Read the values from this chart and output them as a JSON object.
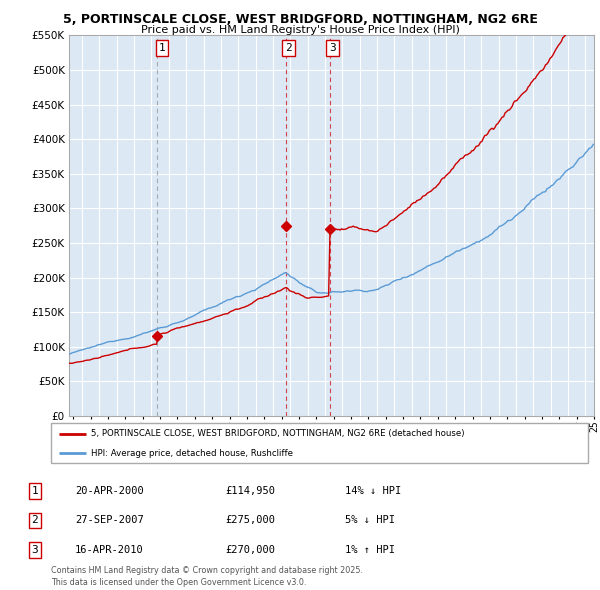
{
  "title_line1": "5, PORTINSCALE CLOSE, WEST BRIDGFORD, NOTTINGHAM, NG2 6RE",
  "title_line2": "Price paid vs. HM Land Registry's House Price Index (HPI)",
  "ylim_min": 0,
  "ylim_max": 550000,
  "xlim_start": 1995.25,
  "xlim_end": 2025.5,
  "sale_dates": [
    2000.31,
    2007.75,
    2010.29
  ],
  "sale_prices": [
    114950,
    275000,
    270000
  ],
  "sale_labels": [
    "1",
    "2",
    "3"
  ],
  "legend_line1": "5, PORTINSCALE CLOSE, WEST BRIDGFORD, NOTTINGHAM, NG2 6RE (detached house)",
  "legend_line2": "HPI: Average price, detached house, Rushcliffe",
  "table_rows": [
    [
      "1",
      "20-APR-2000",
      "£114,950",
      "14% ↓ HPI"
    ],
    [
      "2",
      "27-SEP-2007",
      "£275,000",
      "5% ↓ HPI"
    ],
    [
      "3",
      "16-APR-2010",
      "£270,000",
      "1% ↑ HPI"
    ]
  ],
  "footer": "Contains HM Land Registry data © Crown copyright and database right 2025.\nThis data is licensed under the Open Government Licence v3.0.",
  "hpi_color": "#5b9bd5",
  "sale_color": "#cc0000",
  "bg_chart": "#dce9f5",
  "background_color": "#ffffff",
  "grid_color": "#b8cfe0"
}
